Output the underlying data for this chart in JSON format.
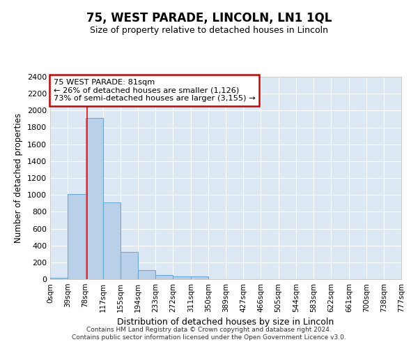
{
  "title": "75, WEST PARADE, LINCOLN, LN1 1QL",
  "subtitle": "Size of property relative to detached houses in Lincoln",
  "xlabel": "Distribution of detached houses by size in Lincoln",
  "ylabel": "Number of detached properties",
  "bin_edges": [
    0,
    39,
    78,
    117,
    155,
    194,
    233,
    272,
    311,
    350,
    389,
    427,
    466,
    505,
    544,
    583,
    622,
    661,
    700,
    738,
    777
  ],
  "bar_heights": [
    20,
    1010,
    1910,
    910,
    320,
    110,
    50,
    30,
    30,
    0,
    0,
    0,
    0,
    0,
    0,
    0,
    0,
    0,
    0,
    0
  ],
  "bar_color": "#b8d0e8",
  "bar_edge_color": "#6aaad4",
  "red_line_x": 81,
  "ylim": [
    0,
    2400
  ],
  "yticks": [
    0,
    200,
    400,
    600,
    800,
    1000,
    1200,
    1400,
    1600,
    1800,
    2000,
    2200,
    2400
  ],
  "annotation_title": "75 WEST PARADE: 81sqm",
  "annotation_line1": "← 26% of detached houses are smaller (1,126)",
  "annotation_line2": "73% of semi-detached houses are larger (3,155) →",
  "annotation_box_color": "#ffffff",
  "annotation_box_edge_color": "#cc0000",
  "footnote1": "Contains HM Land Registry data © Crown copyright and database right 2024.",
  "footnote2": "Contains public sector information licensed under the Open Government Licence v3.0.",
  "fig_bg_color": "#ffffff",
  "plot_bg_color": "#dde8f5",
  "grid_color": "#ffffff",
  "tick_labels": [
    "0sqm",
    "39sqm",
    "78sqm",
    "117sqm",
    "155sqm",
    "194sqm",
    "233sqm",
    "272sqm",
    "311sqm",
    "350sqm",
    "389sqm",
    "427sqm",
    "466sqm",
    "505sqm",
    "544sqm",
    "583sqm",
    "622sqm",
    "661sqm",
    "700sqm",
    "738sqm",
    "777sqm"
  ]
}
